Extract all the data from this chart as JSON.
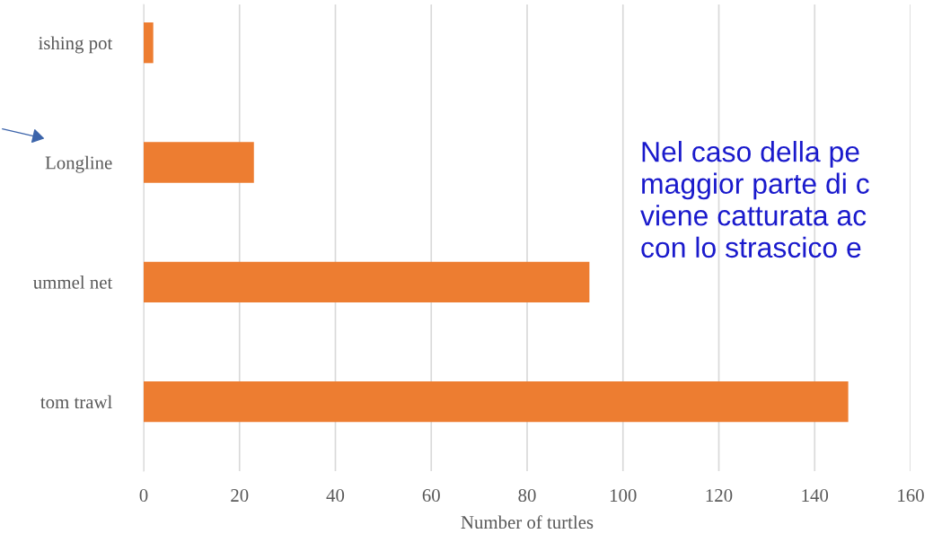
{
  "chart_data": {
    "type": "bar",
    "orientation": "horizontal",
    "categories": [
      "ishing pot",
      "Longline",
      "ummel net",
      "tom trawl"
    ],
    "values": [
      2,
      23,
      93,
      147
    ],
    "color": "#ed7d31",
    "xlim": [
      0,
      160
    ],
    "xticks": [
      0,
      20,
      40,
      60,
      80,
      100,
      120,
      140,
      160
    ],
    "xlabel": "Number of turtles",
    "grid": "x",
    "annotations": [
      "Nel caso della pe\nmaggior parte di c\nviene catturata ac\ncon lo strascico e"
    ]
  }
}
